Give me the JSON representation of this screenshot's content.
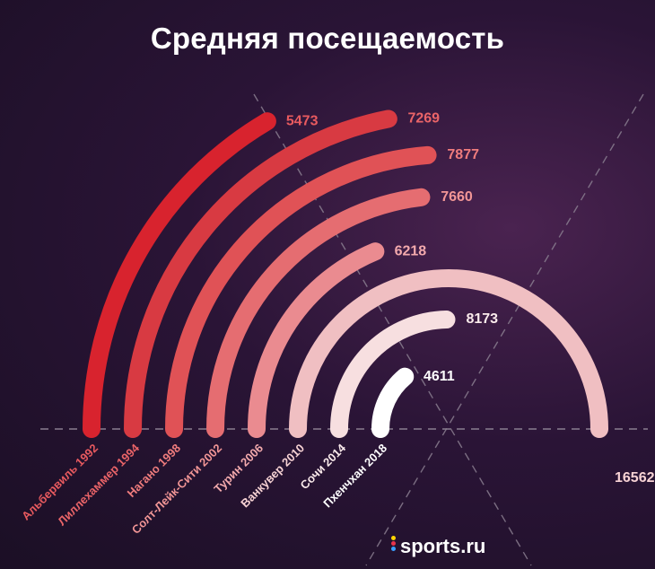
{
  "header": {
    "title": "Средняя посещаемость"
  },
  "brand": {
    "label": "sports.ru",
    "dot_colors": [
      "#ffd400",
      "#e8344b",
      "#3aa0ff"
    ]
  },
  "colors": {
    "background": "#221430",
    "guides": "#8a7e90"
  },
  "chart_data": {
    "type": "radial-bar",
    "title": "Средняя посещаемость",
    "series": [
      {
        "name": "Альбервиль 1992",
        "value": 5473,
        "color": "#d8232e",
        "labelColor": "#e85a5f"
      },
      {
        "name": "Лиллехаммер 1994",
        "value": 7269,
        "color": "#d83a42",
        "labelColor": "#ea6468"
      },
      {
        "name": "Нагано 1998",
        "value": 7877,
        "color": "#e05256",
        "labelColor": "#ef7c7d"
      },
      {
        "name": "Солт-Лейк-Сити 2002",
        "value": 7660,
        "color": "#e56d71",
        "labelColor": "#f29696"
      },
      {
        "name": "Турин 2006",
        "value": 6218,
        "color": "#ea8b90",
        "labelColor": "#f3aaad"
      },
      {
        "name": "Ванкувер 2010",
        "value": 16562,
        "color": "#f0bfc2",
        "labelColor": "#f7d2d4"
      },
      {
        "name": "Сочи 2014",
        "value": 8173,
        "color": "#f7dfe0",
        "labelColor": "#fbebec"
      },
      {
        "name": "Пхенчхан 2018",
        "value": 4611,
        "color": "#ffffff",
        "labelColor": "#ffffff"
      }
    ],
    "value_labels": [
      "5473",
      "7269",
      "7877",
      "7660",
      "6218",
      "16562",
      "8173",
      "4611"
    ],
    "scale_max_value": 16562,
    "full_scale_angle_degrees": 180,
    "grid": true
  }
}
